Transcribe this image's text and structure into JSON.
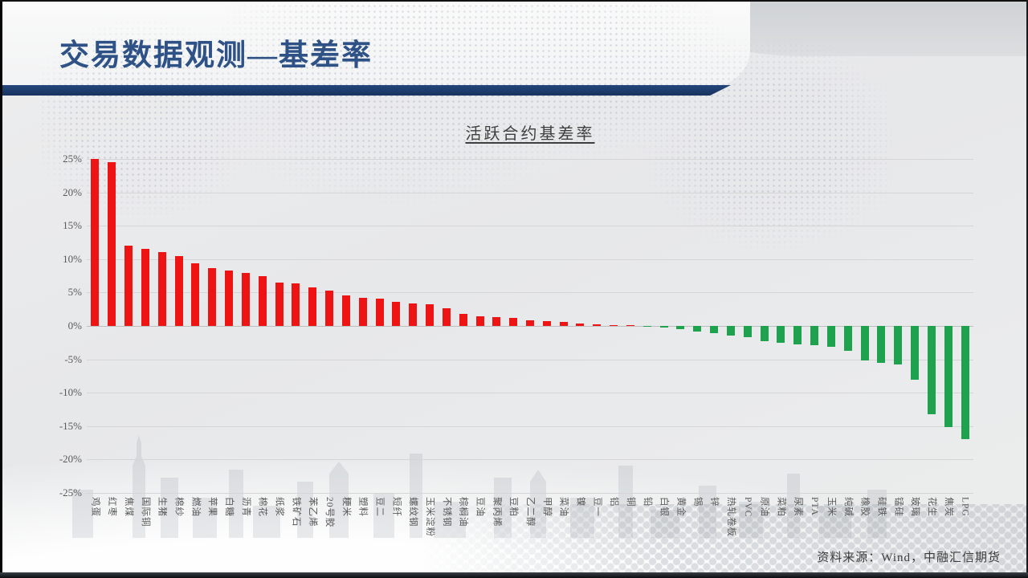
{
  "slide": {
    "title": "交易数据观测—基差率",
    "source": "资料来源：Wind，中融汇信期货"
  },
  "chart_data": {
    "type": "bar",
    "title": "活跃合约基差率",
    "xlabel": "",
    "ylabel": "",
    "ylim": [
      -25,
      25
    ],
    "ytick_step": 5,
    "ytick_labels": [
      "25%",
      "20%",
      "15%",
      "10%",
      "5%",
      "0%",
      "-5%",
      "-10%",
      "-15%",
      "-20%",
      "-25%"
    ],
    "grid": true,
    "legend": "none",
    "colors": {
      "positive": "#ee1414",
      "negative": "#1ea24e"
    },
    "categories": [
      "鸡蛋",
      "红枣",
      "焦煤",
      "国际铜",
      "生猪",
      "棉纱",
      "燃油",
      "苹果",
      "白糖",
      "沥青",
      "棉花",
      "纸浆",
      "铁矿石",
      "苯乙烯",
      "20号胶",
      "粳米",
      "塑料",
      "豆二",
      "短纤",
      "螺纹钢",
      "玉米淀粉",
      "不锈钢",
      "棕榈油",
      "豆油",
      "聚丙烯",
      "豆粕",
      "乙二醇",
      "甲醇",
      "菜油",
      "镍",
      "豆一",
      "铝",
      "铜",
      "铅",
      "白银",
      "黄金",
      "锡",
      "锌",
      "热轧卷板",
      "PVC",
      "原油",
      "菜粕",
      "尿素",
      "PTA",
      "玉米",
      "纯碱",
      "橡胶",
      "硅铁",
      "锰硅",
      "玻璃",
      "花生",
      "焦炭",
      "LPG"
    ],
    "values": [
      25.0,
      24.5,
      12.0,
      11.5,
      11.0,
      10.4,
      9.4,
      8.7,
      8.3,
      7.9,
      7.4,
      6.5,
      6.4,
      5.8,
      5.3,
      4.6,
      4.2,
      4.1,
      3.6,
      3.4,
      3.3,
      2.6,
      1.8,
      1.5,
      1.3,
      1.2,
      0.9,
      0.7,
      0.6,
      0.4,
      0.2,
      0.1,
      0.05,
      -0.05,
      -0.3,
      -0.5,
      -0.9,
      -1.1,
      -1.5,
      -1.7,
      -2.3,
      -2.5,
      -2.8,
      -2.9,
      -3.1,
      -3.7,
      -5.2,
      -5.5,
      -5.8,
      -8.0,
      -13.2,
      -15.1,
      -17.0
    ]
  }
}
